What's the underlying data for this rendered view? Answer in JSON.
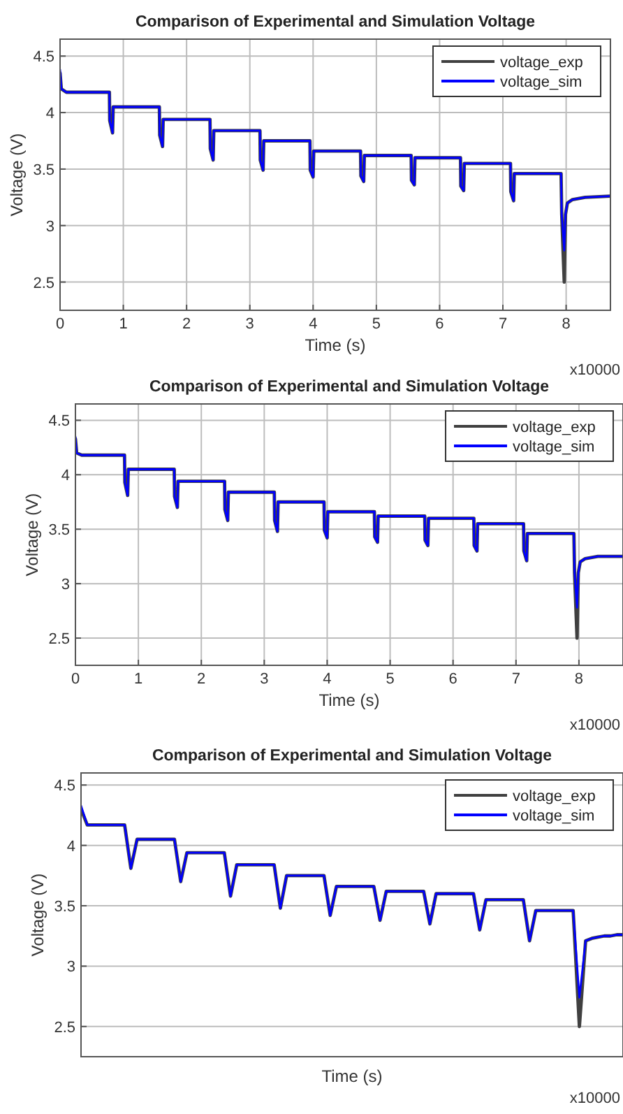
{
  "chart_data": [
    {
      "type": "line",
      "title": "Comparison of Experimental and Simulation Voltage",
      "xlabel": "Time (s)",
      "ylabel": "Voltage (V)",
      "annotations": [
        "x10000"
      ],
      "xlim": [
        0,
        8.7
      ],
      "xticks": [
        0,
        1,
        2,
        3,
        4,
        5,
        6,
        7,
        8
      ],
      "ylim": [
        2.25,
        4.65
      ],
      "yticks": [
        2.5,
        3,
        3.5,
        4,
        4.5
      ],
      "grid": true,
      "legend": "top right",
      "marker": "none",
      "line_style": "solid",
      "x": [
        0,
        0.02,
        0.1,
        0.78,
        0.785,
        0.83,
        0.84,
        1.57,
        1.575,
        1.62,
        1.63,
        2.37,
        2.375,
        2.42,
        2.43,
        3.16,
        3.165,
        3.21,
        3.22,
        3.95,
        3.955,
        4.0,
        4.01,
        4.75,
        4.755,
        4.8,
        4.81,
        5.55,
        5.555,
        5.6,
        5.61,
        6.33,
        6.335,
        6.38,
        6.39,
        7.12,
        7.125,
        7.17,
        7.18,
        7.92,
        7.93,
        7.97,
        7.99,
        8.02,
        8.1,
        8.3,
        8.7
      ],
      "series": [
        {
          "name": "voltage_exp",
          "color": "#404040",
          "values": [
            4.35,
            4.21,
            4.18,
            4.18,
            3.93,
            3.82,
            4.05,
            4.05,
            3.8,
            3.7,
            3.94,
            3.94,
            3.68,
            3.58,
            3.84,
            3.84,
            3.58,
            3.49,
            3.75,
            3.75,
            3.49,
            3.43,
            3.66,
            3.66,
            3.44,
            3.39,
            3.62,
            3.62,
            3.4,
            3.36,
            3.6,
            3.6,
            3.35,
            3.31,
            3.55,
            3.55,
            3.3,
            3.22,
            3.46,
            3.46,
            3.1,
            2.5,
            3.1,
            3.2,
            3.23,
            3.25,
            3.26
          ]
        },
        {
          "name": "voltage_sim",
          "color": "#0000ff",
          "values": [
            4.38,
            4.21,
            4.18,
            4.18,
            3.93,
            3.82,
            4.05,
            4.05,
            3.8,
            3.7,
            3.94,
            3.94,
            3.68,
            3.58,
            3.84,
            3.84,
            3.58,
            3.49,
            3.75,
            3.75,
            3.49,
            3.43,
            3.66,
            3.66,
            3.44,
            3.39,
            3.62,
            3.62,
            3.4,
            3.36,
            3.6,
            3.6,
            3.35,
            3.31,
            3.55,
            3.55,
            3.3,
            3.22,
            3.46,
            3.46,
            3.1,
            2.78,
            3.1,
            3.2,
            3.23,
            3.25,
            3.26
          ]
        }
      ]
    },
    {
      "type": "line",
      "title": "Comparison of Experimental and Simulation Voltage",
      "xlabel": "Time (s)",
      "ylabel": "Voltage (V)",
      "annotations": [
        "x10000"
      ],
      "xlim": [
        0,
        8.7
      ],
      "xticks": [
        0,
        1,
        2,
        3,
        4,
        5,
        6,
        7,
        8
      ],
      "ylim": [
        2.25,
        4.65
      ],
      "yticks": [
        2.5,
        3,
        3.5,
        4,
        4.5
      ],
      "grid": true,
      "legend": "top right",
      "marker": "none",
      "line_style": "solid",
      "x": [
        0,
        0.02,
        0.1,
        0.78,
        0.785,
        0.83,
        0.84,
        1.57,
        1.575,
        1.62,
        1.63,
        2.37,
        2.375,
        2.42,
        2.43,
        3.16,
        3.165,
        3.21,
        3.22,
        3.95,
        3.955,
        4.0,
        4.01,
        4.75,
        4.755,
        4.8,
        4.81,
        5.55,
        5.555,
        5.6,
        5.61,
        6.33,
        6.335,
        6.38,
        6.39,
        7.12,
        7.125,
        7.17,
        7.18,
        7.92,
        7.93,
        7.97,
        7.99,
        8.02,
        8.1,
        8.3,
        8.7
      ],
      "series": [
        {
          "name": "voltage_exp",
          "color": "#404040",
          "values": [
            4.33,
            4.2,
            4.18,
            4.18,
            3.93,
            3.81,
            4.05,
            4.05,
            3.8,
            3.7,
            3.94,
            3.94,
            3.68,
            3.58,
            3.84,
            3.84,
            3.58,
            3.48,
            3.75,
            3.75,
            3.49,
            3.42,
            3.66,
            3.66,
            3.43,
            3.38,
            3.62,
            3.62,
            3.4,
            3.35,
            3.6,
            3.6,
            3.35,
            3.3,
            3.55,
            3.55,
            3.3,
            3.21,
            3.46,
            3.46,
            3.1,
            2.5,
            3.1,
            3.2,
            3.23,
            3.25,
            3.25
          ]
        },
        {
          "name": "voltage_sim",
          "color": "#0000ff",
          "values": [
            4.35,
            4.2,
            4.18,
            4.18,
            3.93,
            3.81,
            4.05,
            4.05,
            3.8,
            3.7,
            3.94,
            3.94,
            3.68,
            3.58,
            3.84,
            3.84,
            3.58,
            3.48,
            3.75,
            3.75,
            3.49,
            3.42,
            3.66,
            3.66,
            3.43,
            3.38,
            3.62,
            3.62,
            3.4,
            3.35,
            3.6,
            3.6,
            3.35,
            3.3,
            3.55,
            3.55,
            3.3,
            3.21,
            3.46,
            3.46,
            3.1,
            2.78,
            3.1,
            3.2,
            3.23,
            3.25,
            3.25
          ]
        }
      ]
    },
    {
      "type": "line",
      "title": "Comparison of Experimental and Simulation Voltage",
      "xlabel": "Time (s)",
      "ylabel": "Voltage (V)",
      "annotations": [
        "x10000"
      ],
      "ylim": [
        2.25,
        4.6
      ],
      "yticks": [
        2.5,
        3,
        3.5,
        4,
        4.5
      ],
      "grid": "y",
      "legend": "top right",
      "marker": "none",
      "line_style": "solid",
      "tick_labels": "y",
      "categories": [
        null,
        null,
        null,
        null,
        null,
        null,
        null,
        null,
        null,
        null,
        null,
        null,
        null,
        null,
        null,
        null,
        null,
        null,
        null,
        null,
        null,
        null,
        null,
        null,
        null,
        null,
        null,
        null,
        null,
        null,
        null,
        null,
        null,
        null,
        null,
        null,
        null,
        null,
        null,
        null,
        null,
        null,
        null,
        null,
        null,
        null,
        null,
        null,
        null,
        null,
        null,
        null,
        null,
        null,
        null,
        null,
        null,
        null,
        null,
        null,
        null,
        null,
        null,
        null,
        null,
        null,
        null,
        null,
        null,
        null,
        null,
        null,
        null,
        null,
        null,
        null,
        null,
        null,
        null,
        null,
        null,
        null,
        null,
        null,
        null,
        null,
        null,
        null
      ],
      "series": [
        {
          "name": "voltage_exp",
          "color": "#404040",
          "values": [
            4.3,
            4.17,
            4.17,
            4.17,
            4.17,
            4.17,
            4.17,
            4.17,
            3.81,
            4.05,
            4.05,
            4.05,
            4.05,
            4.05,
            4.05,
            4.05,
            3.7,
            3.94,
            3.94,
            3.94,
            3.94,
            3.94,
            3.94,
            3.94,
            3.58,
            3.84,
            3.84,
            3.84,
            3.84,
            3.84,
            3.84,
            3.84,
            3.48,
            3.75,
            3.75,
            3.75,
            3.75,
            3.75,
            3.75,
            3.75,
            3.42,
            3.66,
            3.66,
            3.66,
            3.66,
            3.66,
            3.66,
            3.66,
            3.38,
            3.62,
            3.62,
            3.62,
            3.62,
            3.62,
            3.62,
            3.62,
            3.35,
            3.6,
            3.6,
            3.6,
            3.6,
            3.6,
            3.6,
            3.6,
            3.3,
            3.55,
            3.55,
            3.55,
            3.55,
            3.55,
            3.55,
            3.55,
            3.21,
            3.46,
            3.46,
            3.46,
            3.46,
            3.46,
            3.46,
            3.46,
            2.5,
            3.21,
            3.23,
            3.24,
            3.25,
            3.25,
            3.26,
            3.26
          ]
        },
        {
          "name": "voltage_sim",
          "color": "#0000ff",
          "values": [
            4.33,
            4.17,
            4.17,
            4.17,
            4.17,
            4.17,
            4.17,
            4.17,
            3.81,
            4.05,
            4.05,
            4.05,
            4.05,
            4.05,
            4.05,
            4.05,
            3.7,
            3.94,
            3.94,
            3.94,
            3.94,
            3.94,
            3.94,
            3.94,
            3.58,
            3.84,
            3.84,
            3.84,
            3.84,
            3.84,
            3.84,
            3.84,
            3.48,
            3.75,
            3.75,
            3.75,
            3.75,
            3.75,
            3.75,
            3.75,
            3.42,
            3.66,
            3.66,
            3.66,
            3.66,
            3.66,
            3.66,
            3.66,
            3.38,
            3.62,
            3.62,
            3.62,
            3.62,
            3.62,
            3.62,
            3.62,
            3.35,
            3.6,
            3.6,
            3.6,
            3.6,
            3.6,
            3.6,
            3.6,
            3.3,
            3.55,
            3.55,
            3.55,
            3.55,
            3.55,
            3.55,
            3.55,
            3.21,
            3.46,
            3.46,
            3.46,
            3.46,
            3.46,
            3.46,
            3.46,
            2.74,
            3.21,
            3.23,
            3.24,
            3.25,
            3.25,
            3.26,
            3.26
          ]
        }
      ]
    }
  ]
}
